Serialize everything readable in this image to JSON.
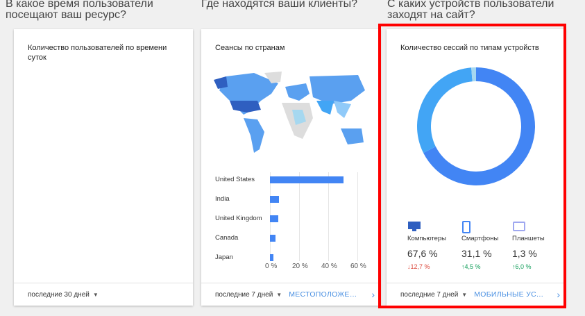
{
  "sections": [
    {
      "question": "В какое время пользователи посещают ваш ресурс?",
      "card_title": "Количество пользователей по времени суток",
      "period": "последние 30 дней"
    },
    {
      "question": "Где находятся ваши клиенты?",
      "card_title": "Сеансы по странам",
      "period": "последние 7 дней",
      "link": "МЕСТОПОЛОЖЕНИ..."
    },
    {
      "question": "С каких устройств пользователи заходят на сайт?",
      "card_title": "Количество сессий по типам устройств",
      "period": "последние 7 дней",
      "link": "МОБИЛЬНЫЕ УСТР..."
    }
  ],
  "chart_data": [
    {
      "type": "bar",
      "orientation": "horizontal",
      "categories": [
        "United States",
        "India",
        "United Kingdom",
        "Canada",
        "Japan"
      ],
      "values": [
        50.5,
        6,
        5.7,
        3.8,
        2.4
      ],
      "xticks": [
        "0 %",
        "20 %",
        "40 %",
        "60 %"
      ],
      "xlim": [
        0,
        60
      ],
      "grid": true,
      "color": "#4285f4"
    },
    {
      "type": "pie",
      "donut": true,
      "categories": [
        "Компьютеры",
        "Смартфоны",
        "Планшеты"
      ],
      "values": [
        67.6,
        31.1,
        1.3
      ],
      "colors": [
        "#4285f4",
        "#42a5f5",
        "#a6d8f0"
      ]
    }
  ],
  "devices": [
    {
      "icon": "desktop-icon",
      "label": "Компьютеры",
      "value": "67,6 %",
      "change": "↓12,7 %",
      "trend": "down"
    },
    {
      "icon": "smartphone-icon",
      "label": "Смартфоны",
      "value": "31,1 %",
      "change": "↑4,5 %",
      "trend": "up"
    },
    {
      "icon": "tablet-icon",
      "label": "Планшеты",
      "value": "1,3 %",
      "change": "↑6,0 %",
      "trend": "up"
    }
  ],
  "colors": {
    "up": "#0f9d58",
    "down": "#db4437",
    "link": "#4a90e2",
    "highlight": "#ff0000"
  }
}
